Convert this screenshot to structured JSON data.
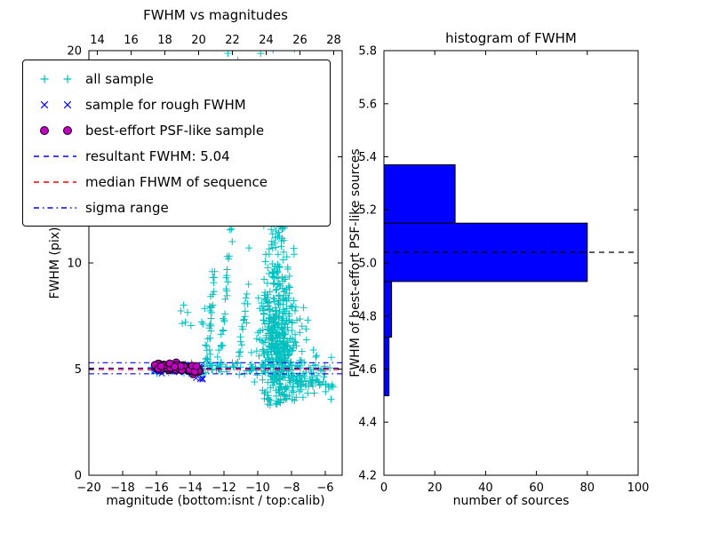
{
  "figure": {
    "background": "#ffffff"
  },
  "chart_data": [
    {
      "type": "scatter",
      "title": "FWHM vs magnitudes",
      "xlabel": "magnitude (bottom:isnt / top:calib)",
      "ylabel": "FWHM (pix)",
      "xlim_bottom": [
        -20,
        -5
      ],
      "xticks_bottom": [
        -20,
        -18,
        -16,
        -14,
        -12,
        -10,
        -8,
        -6
      ],
      "xlim_top": [
        13.5,
        28.5
      ],
      "xticks_top": [
        14,
        16,
        18,
        20,
        22,
        24,
        26,
        28
      ],
      "ylim": [
        0,
        20
      ],
      "yticks": [
        0,
        5,
        10,
        15,
        20
      ],
      "grid": false,
      "legend_position": "upper left",
      "series": [
        {
          "name": "all sample",
          "marker": "plus",
          "color": "#00bfbf",
          "clusters": [
            {
              "kind": "gauss",
              "n": 380,
              "cx": -8.8,
              "cy": 6.2,
              "sx": 0.55,
              "sy": 1.5,
              "ymin": 3.3
            },
            {
              "kind": "gauss",
              "n": 110,
              "cx": -8.9,
              "cy": 9.8,
              "sx": 0.5,
              "sy": 2.2
            },
            {
              "kind": "gauss",
              "n": 55,
              "cx": -8.9,
              "cy": 15.5,
              "sx": 0.9,
              "sy": 1.8,
              "ymax": 20.4
            },
            {
              "kind": "uniformx",
              "n": 70,
              "x0": -7.8,
              "x1": -5.5,
              "cy": 4.6,
              "sy": 0.45
            },
            {
              "kind": "uniformx",
              "n": 90,
              "x0": -16.3,
              "x1": -9.6,
              "cy": 5.05,
              "sy": 0.14
            },
            {
              "kind": "uniformx",
              "n": 40,
              "x0": -10.2,
              "x1": -6.6,
              "cy": 4.15,
              "sy": 0.4
            },
            {
              "kind": "chain",
              "n": 30,
              "x0": -13.05,
              "y0": 5.3,
              "x1": -12.55,
              "y1": 9.6,
              "jx": 0.06,
              "jy": 0.15
            },
            {
              "kind": "chain",
              "n": 34,
              "x0": -12.35,
              "y0": 5.5,
              "x1": -11.35,
              "y1": 13.4,
              "jx": 0.07,
              "jy": 0.2
            },
            {
              "kind": "chain",
              "n": 20,
              "x0": -11.15,
              "y0": 5.3,
              "x1": -10.55,
              "y1": 8.9,
              "jx": 0.06,
              "jy": 0.15
            },
            {
              "kind": "uniform",
              "n": 26,
              "x0": -11.8,
              "x1": -7.8,
              "y0": 18.0,
              "y1": 20.4
            },
            {
              "kind": "uniform",
              "n": 12,
              "x0": -14.6,
              "x1": -12.6,
              "y0": 5.6,
              "y1": 8.2
            }
          ]
        },
        {
          "name": "sample for rough FWHM",
          "marker": "x",
          "color": "#0000ff",
          "clusters": [
            {
              "kind": "uniformx",
              "n": 55,
              "x0": -16.15,
              "x1": -13.35,
              "cy": 5.05,
              "sy": 0.12
            },
            {
              "kind": "uniform",
              "n": 4,
              "x0": -13.65,
              "x1": -13.2,
              "y0": 4.5,
              "y1": 4.75
            }
          ]
        },
        {
          "name": "best-effort PSF-like sample",
          "marker": "circle",
          "color": "#bf00bf",
          "edge_color": "#1a001a",
          "clusters": [
            {
              "kind": "slope",
              "n": 113,
              "x0": -16.1,
              "x1": -13.4,
              "y_at_x0": 5.17,
              "y_at_x1": 4.98,
              "jy": 0.08
            }
          ]
        }
      ],
      "ref_lines": [
        {
          "label": "resultant FWHM: 5.04",
          "y": 5.04,
          "color": "#0000ff",
          "style": "dashed"
        },
        {
          "label": "median FHWM of sequence",
          "y": 4.98,
          "color": "#ff0000",
          "style": "dashed"
        },
        {
          "label": "sigma range",
          "y": 4.78,
          "color": "#0000ff",
          "style": "dashdot"
        },
        {
          "label": "sigma range",
          "y": 5.3,
          "color": "#0000ff",
          "style": "dashdot"
        }
      ],
      "legend": [
        {
          "label": "all sample",
          "swatch": "scatter",
          "marker": "plus",
          "color": "#00bfbf"
        },
        {
          "label": "sample for rough FWHM",
          "swatch": "scatter",
          "marker": "x",
          "color": "#0000ff"
        },
        {
          "label": "best-effort PSF-like sample",
          "swatch": "scatter",
          "marker": "circle",
          "color": "#bf00bf"
        },
        {
          "label": "resultant FWHM: 5.04",
          "swatch": "line",
          "style": "dashed",
          "color": "#0000ff"
        },
        {
          "label": "median FHWM of sequence",
          "swatch": "line",
          "style": "dashed",
          "color": "#ff0000"
        },
        {
          "label": "sigma range",
          "swatch": "line",
          "style": "dashdot",
          "color": "#0000ff"
        }
      ]
    },
    {
      "type": "bar",
      "orientation": "horizontal",
      "title": "histogram of FWHM",
      "xlabel": "number of sources",
      "ylabel": "FWHM of best-effort PSF-like sources",
      "xlim": [
        0,
        100
      ],
      "xticks": [
        0,
        20,
        40,
        60,
        80,
        100
      ],
      "ylim": [
        4.2,
        5.8
      ],
      "yticks": [
        4.2,
        4.4,
        4.6,
        4.8,
        5.0,
        5.2,
        5.4,
        5.6,
        5.8
      ],
      "bin_edges": [
        4.5,
        4.72,
        4.93,
        5.15,
        5.37
      ],
      "counts": [
        2,
        3,
        80,
        28
      ],
      "bar_color": "#0000ff",
      "bar_edge_color": "#000000",
      "ref_line": {
        "y": 5.04,
        "color": "#000000",
        "style": "dashed"
      }
    }
  ]
}
